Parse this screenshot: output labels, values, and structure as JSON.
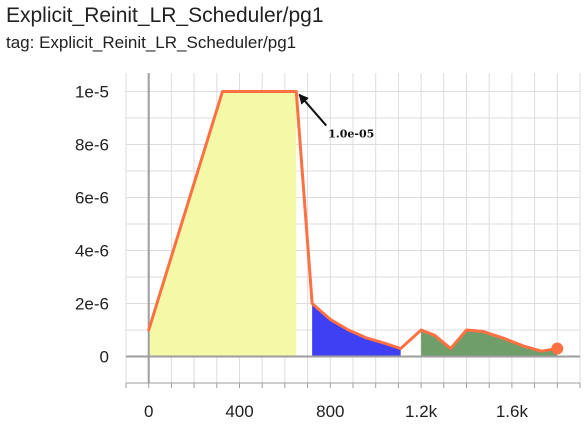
{
  "header": {
    "title": "Explicit_Reinit_LR_Scheduler/pg1",
    "subtitle": "tag: Explicit_Reinit_LR_Scheduler/pg1"
  },
  "chart_data": {
    "type": "line",
    "title": "Explicit_Reinit_LR_Scheduler/pg1",
    "subtitle": "tag: Explicit_Reinit_LR_Scheduler/pg1",
    "xlim": [
      -100,
      1900
    ],
    "ylim": [
      -1e-06,
      1.07e-05
    ],
    "x_ticks": [
      0,
      400,
      800,
      1200,
      1600
    ],
    "x_tick_labels": [
      "0",
      "400",
      "800",
      "1.2k",
      "1.6k"
    ],
    "y_ticks": [
      0,
      2e-06,
      4e-06,
      6e-06,
      8e-06,
      1e-05
    ],
    "y_tick_labels": [
      "0",
      "2e-6",
      "4e-6",
      "6e-6",
      "8e-6",
      "1e-5"
    ],
    "grid": true,
    "colors": {
      "line": "#ff7043",
      "region_1": "#f4f9a8",
      "region_2": "#3f3ff4",
      "region_3": "#6f9e6a",
      "axis": "#9e9e9e",
      "grid": "#dddddd"
    },
    "series": [
      {
        "points": [
          [
            0,
            1e-06
          ],
          [
            325,
            1e-05
          ],
          [
            650,
            1e-05
          ],
          [
            720,
            2e-06
          ],
          [
            800,
            1.4e-06
          ],
          [
            880,
            1e-06
          ],
          [
            960,
            7e-07
          ],
          [
            1040,
            5e-07
          ],
          [
            1110,
            3e-07
          ],
          [
            1200,
            1e-06
          ],
          [
            1260,
            8e-07
          ],
          [
            1330,
            3e-07
          ],
          [
            1400,
            1e-06
          ],
          [
            1470,
            9.5e-07
          ],
          [
            1560,
            7e-07
          ],
          [
            1650,
            4e-07
          ],
          [
            1730,
            2e-07
          ],
          [
            1800,
            3e-07
          ]
        ]
      }
    ],
    "shaded_regions": [
      {
        "x_range": [
          0,
          650
        ],
        "color_key": "region_1"
      },
      {
        "x_range": [
          720,
          1110
        ],
        "color_key": "region_2"
      },
      {
        "x_range": [
          1200,
          1800
        ],
        "color_key": "region_3"
      }
    ],
    "annotations": [
      {
        "text": "1.0e-05",
        "x": 650,
        "y": 1e-05
      }
    ]
  }
}
